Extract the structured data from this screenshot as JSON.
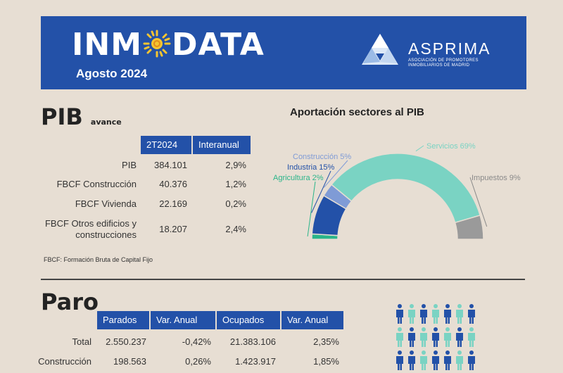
{
  "header": {
    "title_left": "INM",
    "title_right": "DATA",
    "date": "Agosto 2024",
    "org_name": "ASPRIMA",
    "org_sub_line1": "ASOCIACIÓN DE PROMOTORES",
    "org_sub_line2": "INMOBILIARIOS DE MADRID",
    "brand_color": "#2351a8"
  },
  "pib": {
    "title": "PIB",
    "subtitle": "avance",
    "columns": [
      "2T2024",
      "Interanual"
    ],
    "rows": [
      {
        "label": "PIB",
        "value": "384.101",
        "change": "2,9%"
      },
      {
        "label": "FBCF Construcción",
        "value": "40.376",
        "change": "1,2%"
      },
      {
        "label": "FBCF Vivienda",
        "value": "22.169",
        "change": "0,2%"
      },
      {
        "label_line1": "FBCF Otros edificios y",
        "label_line2": "construcciones",
        "value": "18.207",
        "change": "2,4%"
      }
    ],
    "footnote": "FBCF: Formación Bruta de Capital Fijo"
  },
  "chart_data": {
    "type": "pie",
    "variant": "semicircle-donut",
    "title": "Aportación sectores al PIB",
    "categories": [
      "Agricultura",
      "Industria",
      "Construcción",
      "Servicios",
      "Impuestos"
    ],
    "values": [
      2,
      15,
      5,
      69,
      9
    ],
    "labels": [
      "Agricultura 2%",
      "Industria 15%",
      "Construcción 5%",
      "Servicios 69%",
      "Impuestos 9%"
    ],
    "colors": [
      "#2ab58a",
      "#2351a8",
      "#7f9bd6",
      "#7ad3c3",
      "#9a9a9a"
    ],
    "label_colors": [
      "#2ab58a",
      "#2351a8",
      "#7f9bd6",
      "#7ad3c3",
      "#8a8a8a"
    ]
  },
  "paro": {
    "title": "Paro",
    "columns": [
      "Parados",
      "Var. Anual",
      "Ocupados",
      "Var. Anual"
    ],
    "rows": [
      {
        "label": "Total",
        "cells": [
          "2.550.237",
          "-0,42%",
          "21.383.106",
          "2,35%"
        ]
      },
      {
        "label": "Construcción",
        "cells": [
          "198.563",
          "0,26%",
          "1.423.917",
          "1,85%"
        ]
      }
    ]
  },
  "people_graphic": {
    "rows": [
      [
        "#2351a8",
        "#7ad3c3",
        "#2351a8",
        "#7ad3c3",
        "#2351a8",
        "#7ad3c3",
        "#2351a8"
      ],
      [
        "#7ad3c3",
        "#2351a8",
        "#7ad3c3",
        "#2351a8",
        "#7ad3c3",
        "#2351a8",
        "#7ad3c3"
      ],
      [
        "#2351a8",
        "#2351a8",
        "#7ad3c3",
        "#2351a8",
        "#2351a8",
        "#7ad3c3",
        "#2351a8"
      ]
    ]
  }
}
